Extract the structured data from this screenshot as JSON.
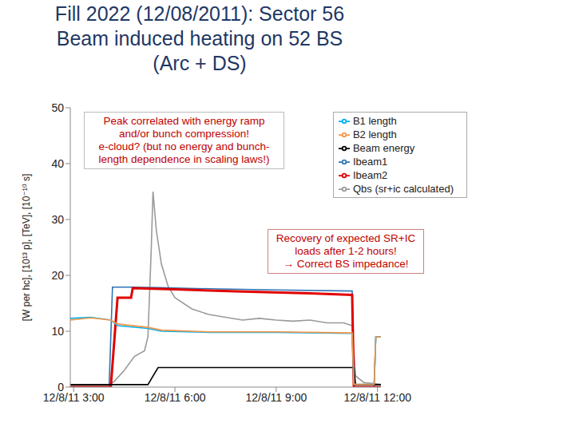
{
  "chart_data": {
    "type": "line",
    "title": [
      "Fill 2022 (12/08/2011): Sector 56",
      "Beam induced heating on 52 BS",
      "(Arc + DS)"
    ],
    "y_label": "[W per hc], [10¹³ p], [TeV], [10⁻¹⁰ s]",
    "xlim": [
      2.9,
      12.1
    ],
    "xticks": [
      {
        "value": 3,
        "label": "12/8/11 3:00"
      },
      {
        "value": 6,
        "label": "12/8/11 6:00"
      },
      {
        "value": 9,
        "label": "12/8/11 9:00"
      },
      {
        "value": 12,
        "label": "12/8/11 12:00"
      }
    ],
    "ylim": [
      0,
      50
    ],
    "yticks": [
      0,
      10,
      20,
      30,
      40,
      50
    ],
    "grid": false,
    "legend": "upper right",
    "series": [
      {
        "name": "Qbs (sr+ic calculated)",
        "color": "#9a9a9a",
        "x": [
          2.9,
          4.0,
          4.2,
          4.5,
          4.8,
          5.1,
          5.2,
          5.3,
          5.35,
          5.45,
          5.6,
          5.8,
          6.0,
          6.5,
          7.0,
          7.5,
          8.0,
          8.5,
          9.0,
          9.5,
          10.0,
          10.5,
          11.0,
          11.25,
          11.35,
          11.6,
          12.1
        ],
        "values": [
          0.3,
          0.3,
          1,
          3,
          5.5,
          6.5,
          9,
          25,
          35,
          28,
          22,
          18,
          16,
          14,
          13,
          12.5,
          12,
          12.3,
          12,
          11.8,
          12,
          11.5,
          11.5,
          11,
          2,
          0.8,
          0.5
        ]
      },
      {
        "name": "Ibeam1",
        "color": "#2e75b6",
        "x": [
          2.9,
          4.05,
          4.15,
          4.7,
          5.5,
          7,
          9,
          11.25,
          11.3,
          11.9,
          11.95,
          12.1
        ],
        "values": [
          0,
          0,
          17.9,
          17.9,
          17.8,
          17.6,
          17.4,
          17.2,
          0,
          0,
          9,
          9
        ]
      },
      {
        "name": "Ibeam2",
        "color": "#e00000",
        "x": [
          2.9,
          4.1,
          4.3,
          4.7,
          4.75,
          6,
          8,
          10,
          11.25,
          11.3,
          12.1
        ],
        "values": [
          0,
          0,
          16,
          16,
          17.7,
          17.5,
          17.1,
          16.8,
          16.5,
          0,
          0
        ]
      },
      {
        "name": "Beam energy",
        "color": "#000000",
        "x": [
          2.9,
          5.2,
          5.5,
          11.3,
          11.35,
          12.1
        ],
        "values": [
          0.45,
          0.45,
          3.5,
          3.5,
          0.45,
          0.45
        ]
      },
      {
        "name": "B1 length",
        "color": "#00b0f0",
        "x": [
          2.9,
          3.5,
          4.1,
          4.3,
          5.2,
          5.6,
          7,
          9,
          11.25,
          11.3,
          11.9,
          11.95,
          12.1
        ],
        "values": [
          12.3,
          12.5,
          12,
          11,
          10.5,
          10,
          9.8,
          9.8,
          9.6,
          0.5,
          0.5,
          9,
          9
        ]
      },
      {
        "name": "B2 length",
        "color": "#f79646",
        "x": [
          2.9,
          3.5,
          4.1,
          4.3,
          5.2,
          5.6,
          7,
          9,
          11.25,
          11.3,
          11.9,
          11.95,
          12.1
        ],
        "values": [
          12,
          12.4,
          12,
          11.3,
          10.7,
          10.2,
          9.9,
          9.9,
          9.7,
          0.5,
          0.5,
          9,
          9
        ]
      }
    ],
    "annotations": [
      {
        "text": [
          "Peak correlated with energy ramp",
          "and/or bunch compression!",
          "e-cloud? (but no energy and bunch-",
          "length dependence in scaling laws!)"
        ]
      },
      {
        "text": [
          "Recovery of expected SR+IC",
          "loads after 1-2 hours!",
          "→ Correct BS impedance!"
        ]
      }
    ]
  }
}
